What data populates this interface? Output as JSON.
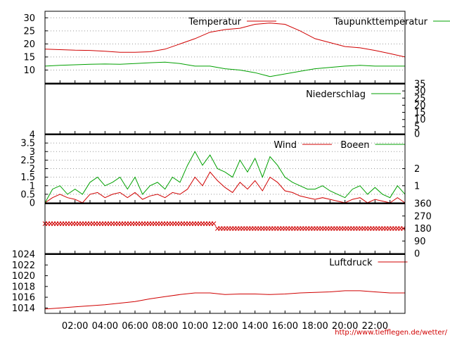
{
  "chart_data": [
    {
      "id": "temperature",
      "type": "line",
      "x_tick_labels": [
        "02:00",
        "04:00",
        "06:00",
        "08:00",
        "10:00",
        "12:00",
        "14:00",
        "16:00",
        "18:00",
        "20:00",
        "22:00"
      ],
      "ylim": [
        5,
        32.5
      ],
      "yticks": [
        10,
        15,
        20,
        25,
        30
      ],
      "grid": true,
      "legend": "top-right",
      "series": [
        {
          "name": "Temperatur",
          "color": "#d00000",
          "x": [
            0,
            1,
            2,
            3,
            4,
            5,
            6,
            7,
            8,
            9,
            10,
            11,
            12,
            13,
            14,
            15,
            16,
            17,
            18,
            19,
            20,
            21,
            22,
            23,
            24
          ],
          "values": [
            18,
            17.8,
            17.6,
            17.5,
            17.2,
            16.8,
            16.8,
            17,
            18,
            20,
            22,
            24.5,
            25.5,
            26,
            27.5,
            28,
            27.5,
            25,
            22,
            20.5,
            19,
            18.5,
            17.5,
            16.3,
            15
          ]
        },
        {
          "name": "Taupunkttemperatur",
          "color": "#00a000",
          "x": [
            0,
            1,
            2,
            3,
            4,
            5,
            6,
            7,
            8,
            9,
            10,
            11,
            12,
            13,
            14,
            15,
            16,
            17,
            18,
            19,
            20,
            21,
            22,
            23,
            24
          ],
          "values": [
            11.5,
            11.8,
            12,
            12.2,
            12.3,
            12.2,
            12.5,
            12.8,
            13,
            12.5,
            11.5,
            11.5,
            10.5,
            10,
            9,
            7.5,
            8.5,
            9.5,
            10.5,
            11,
            11.5,
            11.8,
            11.5,
            11.5,
            11.5
          ]
        }
      ]
    },
    {
      "id": "precipitation",
      "type": "line",
      "ylim": [
        0,
        35
      ],
      "yticks_right": [
        0,
        5,
        10,
        15,
        20,
        25,
        30,
        35
      ],
      "legend": "top-right",
      "series": [
        {
          "name": "Niederschlag",
          "color": "#00a000",
          "x": [
            0,
            24
          ],
          "values": [
            0,
            0
          ]
        }
      ]
    },
    {
      "id": "wind",
      "type": "line",
      "ylim": [
        0,
        4
      ],
      "yticks": [
        0,
        0.5,
        1,
        1.5,
        2,
        2.5,
        3,
        3.5,
        4
      ],
      "yticks_right": [
        1,
        2
      ],
      "grid": true,
      "legend": "top-right",
      "series": [
        {
          "name": "Wind",
          "color": "#d00000",
          "x": [
            0,
            0.5,
            1,
            1.5,
            2,
            2.5,
            3,
            3.5,
            4,
            4.5,
            5,
            5.5,
            6,
            6.5,
            7,
            7.5,
            8,
            8.5,
            9,
            9.5,
            10,
            10.5,
            11,
            11.5,
            12,
            12.5,
            13,
            13.5,
            14,
            14.5,
            15,
            15.5,
            16,
            16.5,
            17,
            17.5,
            18,
            18.5,
            19,
            19.5,
            20,
            20.5,
            21,
            21.5,
            22,
            22.5,
            23,
            23.5,
            24
          ],
          "values": [
            0,
            0.3,
            0.5,
            0.3,
            0.2,
            0,
            0.5,
            0.6,
            0.3,
            0.5,
            0.6,
            0.3,
            0.6,
            0.2,
            0.4,
            0.5,
            0.3,
            0.6,
            0.5,
            0.8,
            1.5,
            1,
            1.8,
            1.3,
            0.9,
            0.6,
            1.2,
            0.8,
            1.3,
            0.7,
            1.5,
            1.2,
            0.7,
            0.6,
            0.4,
            0.3,
            0.2,
            0.3,
            0.2,
            0.1,
            0,
            0.2,
            0.3,
            0,
            0.2,
            0.1,
            0,
            0.3,
            0
          ]
        },
        {
          "name": "Boeen",
          "color": "#00a000",
          "x": [
            0,
            0.5,
            1,
            1.5,
            2,
            2.5,
            3,
            3.5,
            4,
            4.5,
            5,
            5.5,
            6,
            6.5,
            7,
            7.5,
            8,
            8.5,
            9,
            9.5,
            10,
            10.5,
            11,
            11.5,
            12,
            12.5,
            13,
            13.5,
            14,
            14.5,
            15,
            15.5,
            16,
            16.5,
            17,
            17.5,
            18,
            18.5,
            19,
            19.5,
            20,
            20.5,
            21,
            21.5,
            22,
            22.5,
            23,
            23.5,
            24
          ],
          "values": [
            0,
            0.8,
            1,
            0.5,
            0.8,
            0.5,
            1.2,
            1.5,
            1,
            1.2,
            1.5,
            0.8,
            1.5,
            0.5,
            1,
            1.2,
            0.8,
            1.5,
            1.2,
            2.2,
            3,
            2.2,
            2.8,
            2,
            1.8,
            1.5,
            2.5,
            1.8,
            2.6,
            1.5,
            2.7,
            2.2,
            1.5,
            1.2,
            1,
            0.8,
            0.8,
            1,
            0.7,
            0.5,
            0.3,
            0.8,
            1,
            0.5,
            0.9,
            0.5,
            0.3,
            1,
            0.5
          ]
        }
      ]
    },
    {
      "id": "wind_direction",
      "type": "scatter",
      "ylim": [
        0,
        360
      ],
      "yticks_right": [
        0,
        90,
        180,
        270,
        360
      ],
      "series": [
        {
          "color": "#d00000",
          "marker": "x",
          "x": [
            0,
            11.4,
            11.5,
            24
          ],
          "values": [
            215,
            215,
            180,
            180
          ]
        }
      ]
    },
    {
      "id": "pressure",
      "type": "line",
      "ylim": [
        1013,
        1024
      ],
      "yticks": [
        1014,
        1016,
        1018,
        1020,
        1022,
        1024
      ],
      "legend": "top-right",
      "series": [
        {
          "name": "Luftdruck",
          "color": "#d00000",
          "x": [
            0,
            1,
            2,
            3,
            4,
            5,
            6,
            7,
            8,
            9,
            10,
            11,
            12,
            13,
            14,
            15,
            16,
            17,
            18,
            19,
            20,
            21,
            22,
            23,
            24
          ],
          "values": [
            1013.8,
            1014,
            1014.2,
            1014.4,
            1014.6,
            1014.9,
            1015.2,
            1015.7,
            1016.1,
            1016.5,
            1016.8,
            1016.8,
            1016.5,
            1016.6,
            1016.6,
            1016.5,
            1016.6,
            1016.8,
            1016.9,
            1017,
            1017.2,
            1017.2,
            1017,
            1016.8,
            1016.8
          ]
        }
      ]
    }
  ],
  "footer": {
    "url": "http://www.tiefflegen.de/wetter/"
  }
}
